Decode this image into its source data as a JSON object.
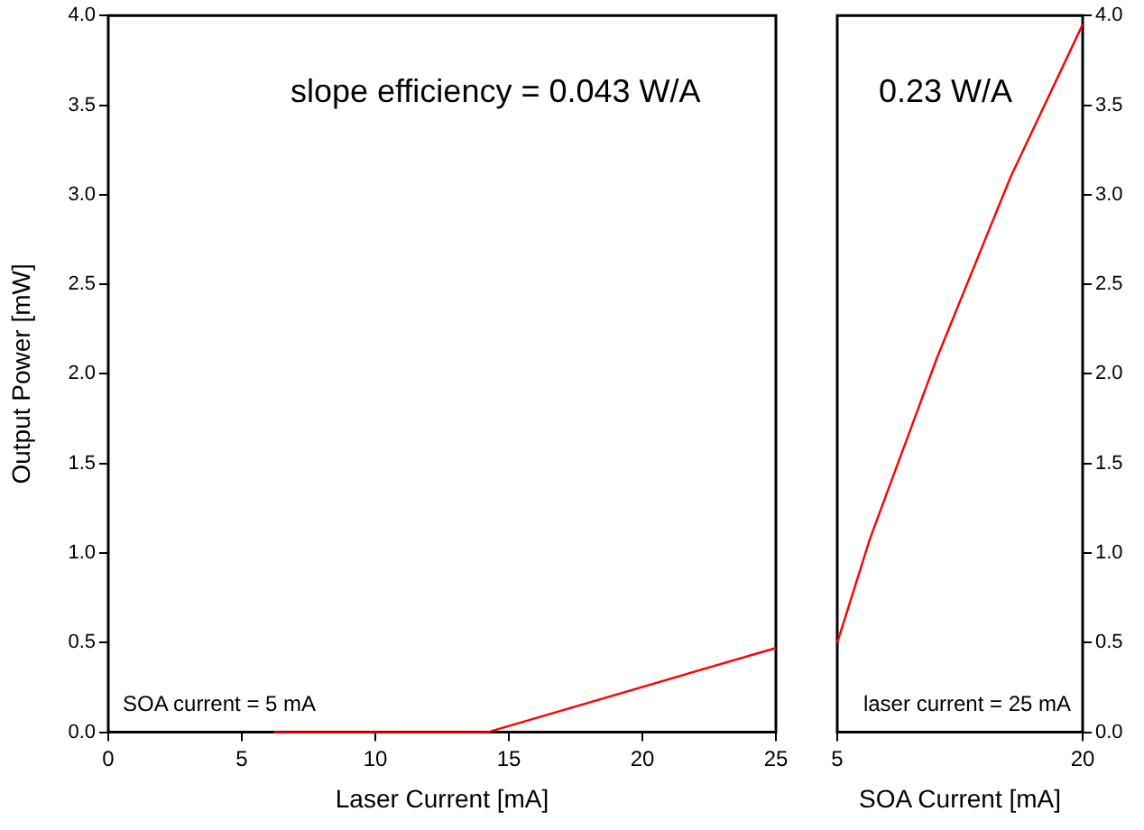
{
  "chart_data": [
    {
      "type": "line",
      "xlabel": "Laser Current [mA]",
      "ylabel": "Output Power [mW]",
      "annotations": [
        "slope efficiency = 0.043 W/A",
        "SOA current = 5 mA"
      ],
      "xlim": [
        0,
        25
      ],
      "xticks": [
        0,
        5,
        10,
        15,
        20,
        25
      ],
      "ylim": [
        0,
        4
      ],
      "yticks": [
        {
          "value": 0,
          "label": "0.0"
        },
        {
          "value": 0.5,
          "label": "0.5"
        },
        {
          "value": 1,
          "label": "1.0"
        },
        {
          "value": 1.5,
          "label": "1.5"
        },
        {
          "value": 2,
          "label": "2.0"
        },
        {
          "value": 2.5,
          "label": "2.5"
        },
        {
          "value": 3,
          "label": "3.0"
        },
        {
          "value": 3.5,
          "label": "3.5"
        },
        {
          "value": 4,
          "label": "4.0"
        }
      ],
      "grid": false,
      "legend": false,
      "series": [
        {
          "color": "#ff0000",
          "x": [
            6.2,
            14.2,
            25
          ],
          "values": [
            0,
            0,
            0.47
          ]
        }
      ]
    },
    {
      "type": "line",
      "xlabel": "SOA Current [mA]",
      "annotations": [
        "0.23 W/A",
        "laser current = 25 mA"
      ],
      "xlim": [
        5,
        20
      ],
      "xticks": [
        5,
        20
      ],
      "ylim": [
        0,
        4
      ],
      "yticks": [
        {
          "value": 0,
          "label": "0.0"
        },
        {
          "value": 0.5,
          "label": "0.5"
        },
        {
          "value": 1,
          "label": "1.0"
        },
        {
          "value": 1.5,
          "label": "1.5"
        },
        {
          "value": 2,
          "label": "2.0"
        },
        {
          "value": 2.5,
          "label": "2.5"
        },
        {
          "value": 3,
          "label": "3.0"
        },
        {
          "value": 3.5,
          "label": "3.5"
        },
        {
          "value": 4,
          "label": "4.0"
        }
      ],
      "grid": false,
      "legend": false,
      "series": [
        {
          "color": "#ff0000",
          "x": [
            5,
            7,
            11.1,
            15.6,
            20
          ],
          "values": [
            0.5,
            1.08,
            2.09,
            3.1,
            3.95
          ]
        }
      ]
    }
  ]
}
